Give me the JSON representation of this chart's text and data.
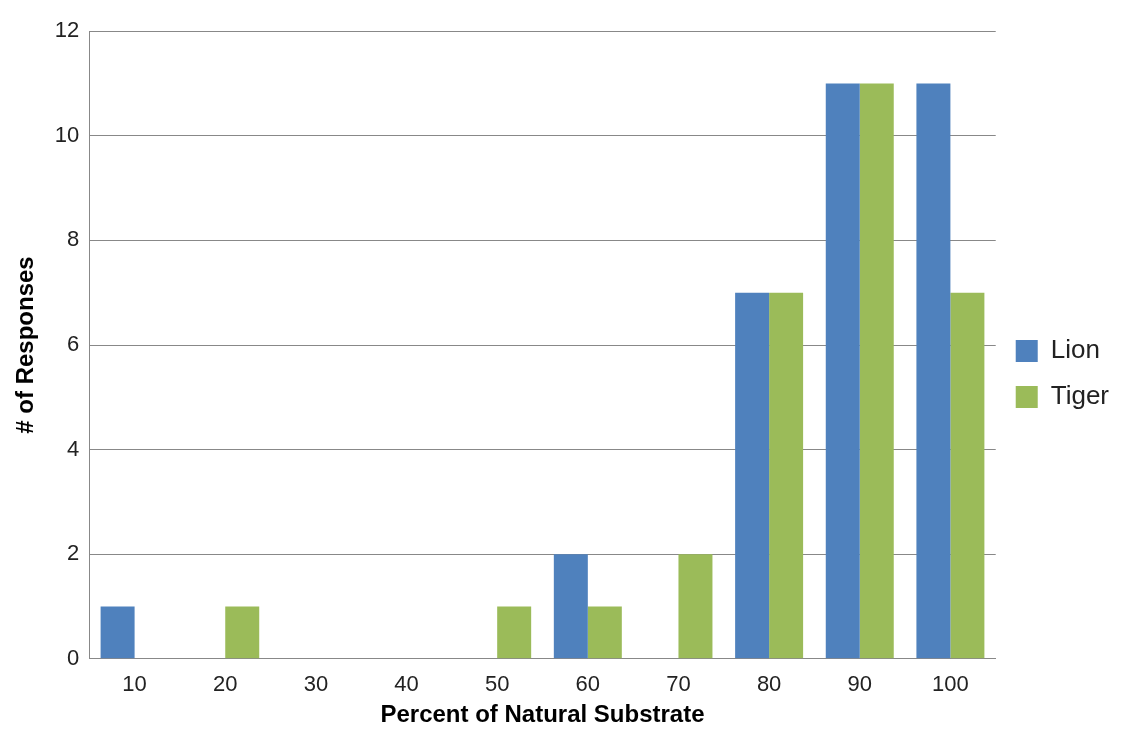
{
  "chart_data": {
    "type": "bar",
    "xlabel": "Percent of Natural Substrate",
    "ylabel": "# of Responses",
    "categories": [
      "10",
      "20",
      "30",
      "40",
      "50",
      "60",
      "70",
      "80",
      "90",
      "100"
    ],
    "series": [
      {
        "name": "Lion",
        "color": "#4f81bd",
        "values": [
          1,
          0,
          0,
          0,
          0,
          2,
          0,
          7,
          11,
          11
        ]
      },
      {
        "name": "Tiger",
        "color": "#9bbb59",
        "values": [
          0,
          1,
          0,
          0,
          1,
          1,
          2,
          7,
          11,
          7
        ]
      }
    ],
    "ylim": [
      0,
      12
    ],
    "yticks": [
      0,
      2,
      4,
      6,
      8,
      10,
      12
    ],
    "grid": "y",
    "legend": "right"
  }
}
